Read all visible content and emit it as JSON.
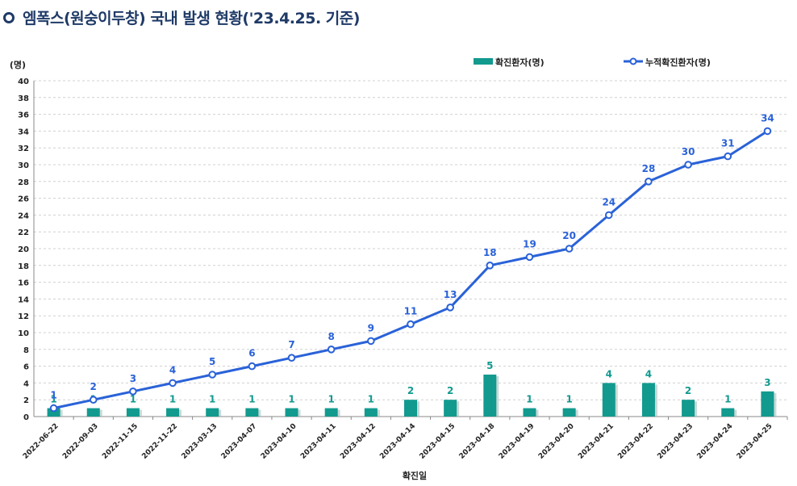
{
  "page": {
    "title": "엠폭스(원숭이두창) 국내 발생 현황('23.4.25. 기준)"
  },
  "colors": {
    "bar": "#129a8f",
    "line": "#2a62d8",
    "grid": "#d0d0d0",
    "title": "#1f3a67"
  },
  "chart_data": {
    "type": "bar+line",
    "title": "엠폭스(원숭이두창) 국내 발생 현황('23.4.25. 기준)",
    "ylabel": "(명)",
    "xlabel": "확진일",
    "ylim": [
      0,
      40
    ],
    "yticks": [
      "0",
      "2",
      "4",
      "6",
      "8",
      "10",
      "12",
      "14",
      "16",
      "18",
      "20",
      "22",
      "24",
      "26",
      "28",
      "30",
      "32",
      "34",
      "36",
      "38",
      "40"
    ],
    "categories": [
      "2022-06-22",
      "2022-09-03",
      "2022-11-15",
      "2022-11-22",
      "2023-03-13",
      "2023-04-07",
      "2023-04-10",
      "2023-04-11",
      "2023-04-12",
      "2023-04-14",
      "2023-04-15",
      "2023-04-18",
      "2023-04-19",
      "2023-04-20",
      "2023-04-21",
      "2023-04-22",
      "2023-04-23",
      "2023-04-24",
      "2023-04-25"
    ],
    "series": [
      {
        "name": "확진환자(명)",
        "kind": "bar",
        "values": [
          1,
          1,
          1,
          1,
          1,
          1,
          1,
          1,
          1,
          2,
          2,
          5,
          1,
          1,
          4,
          4,
          2,
          1,
          3
        ]
      },
      {
        "name": "누적확진환자(명)",
        "kind": "line",
        "values": [
          1,
          2,
          3,
          4,
          5,
          6,
          7,
          8,
          9,
          11,
          13,
          18,
          19,
          20,
          24,
          28,
          30,
          31,
          34
        ]
      }
    ],
    "legend_position": "top-right"
  }
}
